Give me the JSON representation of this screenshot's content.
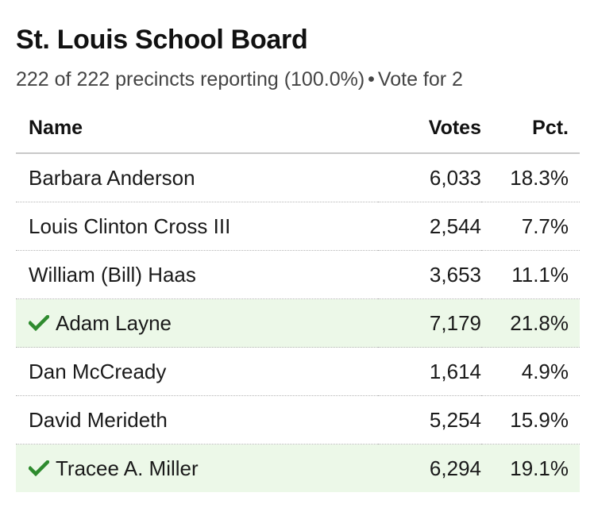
{
  "race": {
    "title": "St. Louis School Board",
    "precincts_text": "222 of 222 precincts reporting (100.0%)",
    "separator": "•",
    "vote_for_text": "Vote for 2"
  },
  "table": {
    "headers": {
      "name": "Name",
      "votes": "Votes",
      "pct": "Pct."
    },
    "rows": [
      {
        "name": "Barbara Anderson",
        "votes": "6,033",
        "pct": "18.3%",
        "winner": false
      },
      {
        "name": "Louis Clinton Cross III",
        "votes": "2,544",
        "pct": "7.7%",
        "winner": false
      },
      {
        "name": "William (Bill) Haas",
        "votes": "3,653",
        "pct": "11.1%",
        "winner": false
      },
      {
        "name": "Adam Layne",
        "votes": "7,179",
        "pct": "21.8%",
        "winner": true
      },
      {
        "name": "Dan McCready",
        "votes": "1,614",
        "pct": "4.9%",
        "winner": false
      },
      {
        "name": "David Merideth",
        "votes": "5,254",
        "pct": "15.9%",
        "winner": false
      },
      {
        "name": "Tracee A. Miller",
        "votes": "6,294",
        "pct": "19.1%",
        "winner": true
      }
    ]
  },
  "icons": {
    "winner": "checkmark-icon"
  },
  "colors": {
    "winner_row_bg": "#ecf8e8",
    "checkmark": "#2e8b2e"
  }
}
